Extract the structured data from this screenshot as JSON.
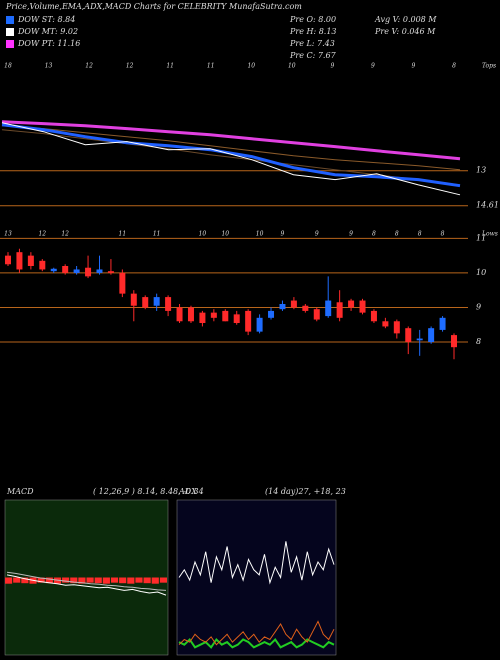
{
  "header": {
    "title": "Price,Volume,EMA,ADX,MACD Charts for CELEBRITY MunafaSutra.com",
    "legend": [
      {
        "label": "DOW ST: 8.84",
        "color": "#1e6cff"
      },
      {
        "label": "DOW MT: 9.02",
        "color": "#ffffff"
      },
      {
        "label": "DOW PT: 11.16",
        "color": "#ff33ff"
      }
    ],
    "stats": [
      "Pre O: 8.00",
      "Avg V: 0.008 M",
      "Pre H: 8.13",
      "Pre V: 0.046 M",
      "Pre L: 7.43",
      "Pre C: 7.67"
    ]
  },
  "chart_data": [
    {
      "type": "line",
      "label": "Tops",
      "categories": [
        "18",
        "13",
        "12",
        "12",
        "11",
        "11",
        "10",
        "10",
        "9",
        "9",
        "9",
        "8"
      ],
      "series": [
        {
          "color": "#e040e0",
          "width": 3,
          "values": [
            10.74,
            10.83,
            10.93,
            11.06,
            11.2,
            11.34,
            11.53,
            11.71,
            11.89,
            12.08,
            12.26,
            12.45
          ]
        },
        {
          "color": "#8a5a2a",
          "width": 1,
          "values": [
            10.93,
            11.06,
            11.25,
            11.43,
            11.62,
            11.85,
            12.08,
            12.31,
            12.49,
            12.63,
            12.77,
            12.95
          ]
        },
        {
          "color": "#6b4a2a",
          "width": 1,
          "values": [
            11.11,
            11.29,
            11.53,
            11.76,
            11.99,
            12.26,
            12.49,
            12.72,
            12.95,
            13.18,
            13.41,
            13.65
          ]
        },
        {
          "color": "#2060ff",
          "width": 3,
          "values": [
            10.88,
            11.11,
            11.43,
            11.71,
            11.85,
            12.03,
            12.35,
            12.86,
            13.18,
            13.28,
            13.41,
            13.69
          ]
        },
        {
          "color": "#ffffff",
          "width": 1,
          "values": [
            10.79,
            11.2,
            11.8,
            11.66,
            12.03,
            11.99,
            12.49,
            13.18,
            13.41,
            13.14,
            13.65,
            14.11
          ]
        }
      ],
      "ylim": [
        14.9,
        7.9
      ],
      "yticks": [
        13,
        14.61
      ],
      "hline_color": "#b8651b"
    },
    {
      "type": "candlestick",
      "label": "Lows",
      "categories": [
        "13",
        null,
        null,
        "12",
        null,
        "12",
        null,
        null,
        null,
        null,
        "11",
        null,
        null,
        "11",
        null,
        null,
        null,
        "10",
        null,
        "10",
        null,
        null,
        "10",
        null,
        "9",
        null,
        null,
        "9",
        null,
        null,
        "9",
        null,
        "8",
        null,
        "8",
        null,
        "8",
        null,
        "8",
        null
      ],
      "open": [
        10.5,
        10.6,
        10.5,
        10.35,
        10.05,
        10.2,
        10.0,
        10.15,
        10.0,
        10.05,
        10.0,
        9.4,
        9.3,
        9.05,
        9.3,
        9.0,
        9.0,
        8.85,
        8.85,
        8.9,
        8.8,
        8.9,
        8.3,
        8.7,
        8.95,
        9.2,
        9.05,
        8.95,
        8.75,
        9.15,
        9.2,
        9.2,
        8.9,
        8.6,
        8.6,
        8.4,
        8.05,
        8.0,
        8.35,
        8.2
      ],
      "high": [
        10.6,
        10.7,
        10.6,
        10.4,
        10.15,
        10.25,
        10.2,
        10.5,
        10.5,
        10.4,
        10.1,
        9.5,
        9.35,
        9.4,
        9.35,
        9.1,
        9.05,
        8.9,
        8.95,
        8.95,
        8.9,
        8.95,
        8.8,
        9.0,
        9.2,
        9.3,
        9.1,
        9.0,
        9.9,
        9.5,
        9.25,
        9.25,
        8.95,
        8.7,
        8.65,
        8.45,
        8.35,
        8.45,
        8.75,
        8.25
      ],
      "low": [
        10.2,
        10.0,
        10.1,
        10.05,
        10.0,
        9.95,
        9.95,
        9.85,
        9.95,
        9.95,
        9.3,
        8.6,
        8.95,
        8.9,
        8.75,
        8.55,
        8.55,
        8.45,
        8.6,
        8.6,
        8.5,
        8.2,
        8.25,
        8.65,
        8.9,
        8.95,
        8.85,
        8.6,
        8.7,
        8.6,
        8.9,
        8.8,
        8.55,
        8.4,
        8.1,
        7.65,
        7.6,
        7.95,
        8.3,
        7.5
      ],
      "close": [
        10.25,
        10.1,
        10.2,
        10.1,
        10.12,
        10.0,
        10.1,
        9.9,
        10.1,
        10.0,
        9.4,
        9.05,
        9.0,
        9.3,
        8.9,
        8.6,
        8.6,
        8.55,
        8.7,
        8.6,
        8.55,
        8.3,
        8.7,
        8.9,
        9.1,
        9.0,
        8.9,
        8.65,
        9.2,
        8.7,
        9.0,
        8.85,
        8.6,
        8.45,
        8.25,
        8.0,
        8.1,
        8.4,
        8.7,
        7.85
      ],
      "up_color": "#1e6cff",
      "down_color": "#ff2a2a",
      "ylim": [
        6.9,
        11.3
      ],
      "yticks": [
        8,
        9,
        10,
        11
      ],
      "hline_color": "#b8651b"
    },
    {
      "type": "line",
      "title": "MACD",
      "subtitle": "( 12,26,9 ) 8.14, 8.48, -0.34",
      "background": "#0b2a0b",
      "series": [
        {
          "color": "#ffffff",
          "width": 1,
          "values": [
            0.05,
            0.02,
            -0.02,
            -0.05,
            -0.08,
            -0.1,
            -0.12,
            -0.15,
            -0.14,
            -0.16,
            -0.18,
            -0.2,
            -0.19,
            -0.22,
            -0.25,
            -0.23,
            -0.27,
            -0.3,
            -0.28,
            -0.34
          ]
        },
        {
          "color": "#bbbbbb",
          "width": 1,
          "values": [
            0.1,
            0.08,
            0.05,
            0.02,
            -0.01,
            -0.03,
            -0.05,
            -0.07,
            -0.09,
            -0.1,
            -0.12,
            -0.13,
            -0.15,
            -0.16,
            -0.18,
            -0.19,
            -0.21,
            -0.22,
            -0.24,
            -0.25
          ]
        }
      ],
      "histogram": {
        "color": "#ff2a2a",
        "values": [
          -0.12,
          -0.1,
          -0.11,
          -0.12,
          -0.1,
          -0.11,
          -0.12,
          -0.1,
          -0.11,
          -0.12,
          -0.1,
          -0.11,
          -0.12,
          -0.1,
          -0.11,
          -0.12,
          -0.1,
          -0.11,
          -0.12,
          -0.1
        ]
      },
      "ylim": [
        -1.5,
        1.5
      ]
    },
    {
      "type": "line",
      "title": "ADX",
      "subtitle": "(14 day)27, +18, 23",
      "background": "#05051e",
      "series": [
        {
          "color": "#ffffff",
          "width": 1,
          "values": [
            30,
            33,
            29,
            36,
            31,
            40,
            28,
            38,
            33,
            42,
            30,
            35,
            29,
            37,
            33,
            31,
            39,
            28,
            34,
            30,
            44,
            32,
            38,
            29,
            40,
            31,
            36,
            33,
            41,
            35
          ]
        },
        {
          "color": "#22cc22",
          "width": 2,
          "values": [
            5,
            4,
            6,
            3,
            4,
            5,
            3,
            6,
            4,
            5,
            3,
            4,
            6,
            5,
            3,
            4,
            5,
            4,
            6,
            3,
            4,
            5,
            3,
            4,
            6,
            5,
            4,
            3,
            5,
            4
          ]
        },
        {
          "color": "#e0601a",
          "width": 1,
          "values": [
            4,
            6,
            5,
            8,
            6,
            5,
            7,
            4,
            6,
            8,
            5,
            7,
            9,
            6,
            8,
            5,
            7,
            6,
            9,
            12,
            8,
            6,
            10,
            7,
            5,
            9,
            13,
            8,
            6,
            10
          ]
        }
      ],
      "ylim": [
        0,
        60
      ]
    }
  ]
}
